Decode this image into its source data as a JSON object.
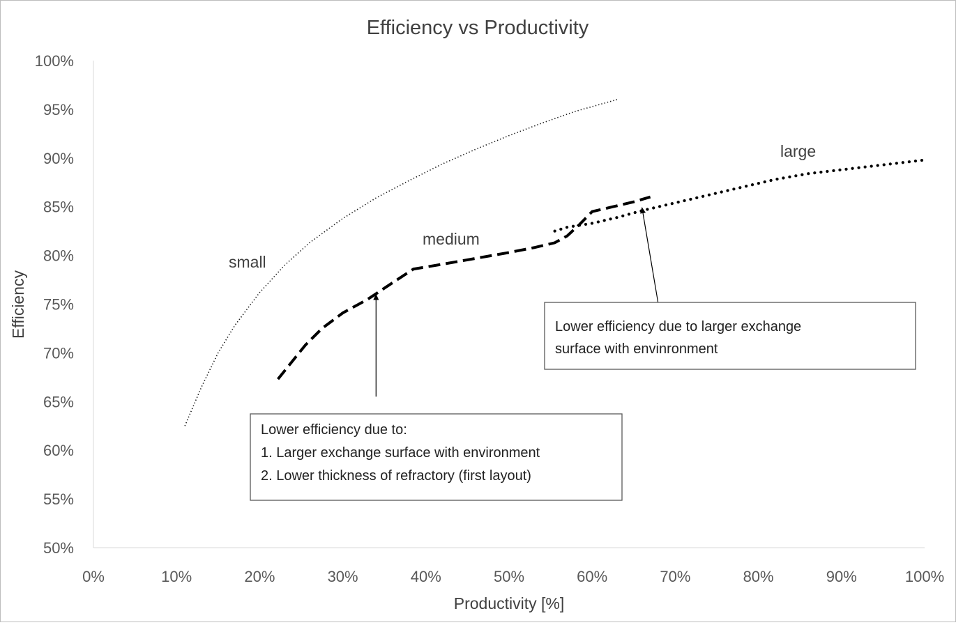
{
  "chart_data": {
    "type": "line",
    "title": "Efficiency vs Productivity",
    "xlabel": "Productivity [%]",
    "ylabel": "Efficiency",
    "xlim": [
      0,
      100
    ],
    "ylim": [
      50,
      100
    ],
    "x_ticks": [
      "0%",
      "10%",
      "20%",
      "30%",
      "40%",
      "50%",
      "60%",
      "70%",
      "80%",
      "90%",
      "100%"
    ],
    "y_ticks": [
      "50%",
      "55%",
      "60%",
      "65%",
      "70%",
      "75%",
      "80%",
      "85%",
      "90%",
      "95%",
      "100%"
    ],
    "grid": false,
    "legend": "none",
    "series": [
      {
        "name": "small",
        "label": "small",
        "style": "dotted-fine",
        "color": "#1a1a1a",
        "x": [
          11,
          13,
          15,
          17,
          20,
          23,
          26,
          30,
          34,
          38,
          42,
          46,
          50,
          54,
          58,
          63
        ],
        "y": [
          62.5,
          66.5,
          70,
          72.8,
          76.2,
          79,
          81.3,
          83.8,
          85.9,
          87.7,
          89.4,
          90.9,
          92.3,
          93.6,
          94.8,
          96
        ]
      },
      {
        "name": "medium",
        "label": "medium",
        "style": "dashed",
        "color": "#000000",
        "x": [
          22.2,
          25.5,
          27.5,
          30,
          33,
          36,
          38.5,
          42,
          46,
          50,
          53,
          55.5,
          57,
          58.5,
          60,
          62.5,
          65,
          67
        ],
        "y": [
          67.3,
          70.8,
          72.5,
          74.1,
          75.5,
          77.2,
          78.6,
          79.1,
          79.7,
          80.3,
          80.8,
          81.3,
          82,
          83.2,
          84.5,
          85,
          85.5,
          86
        ]
      },
      {
        "name": "large",
        "label": "large",
        "style": "dotted-bold",
        "color": "#000000",
        "x": [
          55.5,
          57,
          58.5,
          60,
          63,
          66,
          70,
          74,
          78,
          82,
          86,
          90,
          94,
          97,
          100
        ],
        "y": [
          82.5,
          82.9,
          83.1,
          83.3,
          83.9,
          84.6,
          85.4,
          86.2,
          87,
          87.8,
          88.4,
          88.8,
          89.2,
          89.5,
          89.8
        ]
      }
    ],
    "annotations": [
      {
        "lines": [
          "Lower efficiency due to larger exchange",
          "surface with envinronment"
        ],
        "arrow_from": [
          68,
          74.8
        ],
        "arrow_to": [
          66,
          84.9
        ]
      },
      {
        "lines": [
          "Lower efficiency due to:",
          "1. Larger exchange surface with environment",
          "2. Lower thickness of refractory (first layout)"
        ],
        "arrow_from": [
          34,
          65.5
        ],
        "arrow_to": [
          34,
          76
        ]
      }
    ]
  }
}
